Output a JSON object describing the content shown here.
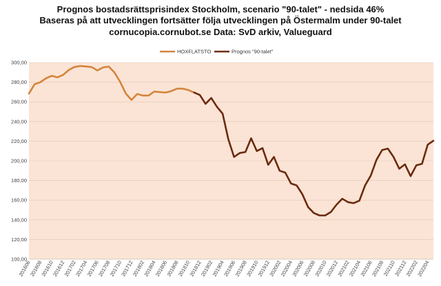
{
  "chart_data": {
    "type": "line",
    "title": "Prognos bostadsrättsprisindex Stockholm, scenario \"90-talet\" - nedsida 46%",
    "subtitle": "Baseras på att utvecklingen fortsätter följa utvecklingen på Östermalm under 90-talet",
    "source_line": "cornucopia.cornubot.se Data: SvD arkiv, Valueguard",
    "ylim": [
      100,
      300
    ],
    "yticks": [
      "100,00",
      "120,00",
      "140,00",
      "160,00",
      "180,00",
      "200,00",
      "220,00",
      "240,00",
      "260,00",
      "280,00",
      "300,00"
    ],
    "xtick_labels": [
      "201606",
      "201608",
      "201610",
      "201612",
      "201702",
      "201704",
      "201706",
      "201708",
      "201710",
      "201712",
      "201802",
      "201804",
      "201806",
      "201808",
      "201810",
      "201812",
      "201902",
      "201904",
      "201906",
      "201908",
      "201910",
      "201912",
      "202002",
      "202004",
      "202006",
      "202008",
      "202010",
      "202012",
      "202102",
      "202104",
      "202106",
      "202108",
      "202110",
      "202112",
      "202202",
      "202204"
    ],
    "legend_position": "top-left",
    "colors": {
      "plot_bg": "#fbe4d5",
      "hoxflatsto": "#d4843c",
      "prognos": "#6b2a0e"
    },
    "series": [
      {
        "name": "HOXFLATSTO",
        "start_index": 0,
        "values": [
          268.5,
          278,
          280,
          284,
          286.5,
          285,
          287.5,
          292.5,
          295.5,
          296.5,
          296,
          295.5,
          292,
          295,
          296,
          290,
          280.5,
          268.5,
          262,
          268,
          266.5,
          266.5,
          270.5,
          270,
          269.5,
          271,
          273.5,
          273.5,
          272,
          269.5
        ]
      },
      {
        "name": "Prognos \"90-talet\"",
        "start_index": 29,
        "values": [
          269.5,
          267,
          258,
          264,
          255,
          248,
          222,
          204,
          208,
          209,
          223,
          210,
          213,
          196,
          204,
          190,
          188,
          177,
          175,
          166,
          153,
          147,
          144.5,
          144.5,
          148,
          155.5,
          161.5,
          158,
          157,
          159.5,
          175,
          185,
          201,
          211,
          212.5,
          204,
          192,
          196.5,
          184.5,
          195.5,
          197,
          216.5,
          220.5
        ]
      }
    ]
  }
}
